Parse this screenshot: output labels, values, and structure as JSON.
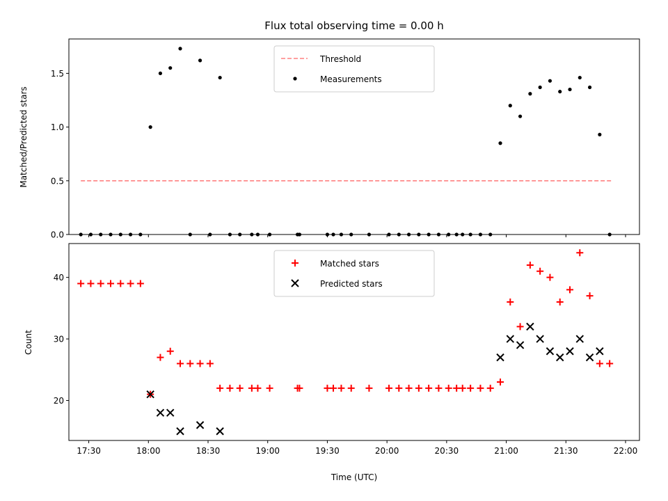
{
  "title": "Flux total observing time = 0.00 h",
  "chart_data": [
    {
      "type": "scatter",
      "ylabel": "Matched/Predicted stars",
      "xlabel": "",
      "xlim": [
        "17:20",
        "22:07"
      ],
      "ylim": [
        0,
        1.82
      ],
      "y_ticks": [
        0.0,
        0.5,
        1.0,
        1.5
      ],
      "y_tick_labels": [
        "0.0",
        "0.5",
        "1.0",
        "1.5"
      ],
      "x_ticks": [
        "17:30",
        "18:00",
        "18:30",
        "19:00",
        "19:30",
        "20:00",
        "20:30",
        "21:00",
        "21:30",
        "22:00"
      ],
      "threshold": {
        "name": "Threshold",
        "x": [
          "17:26",
          "21:53"
        ],
        "y": 0.5,
        "color": "#ff8080",
        "style": "dashed"
      },
      "series": [
        {
          "name": "Measurements",
          "color": "#000000",
          "marker": "dot",
          "points": [
            [
              "17:26",
              0
            ],
            [
              "17:31",
              0
            ],
            [
              "17:36",
              0
            ],
            [
              "17:41",
              0
            ],
            [
              "17:46",
              0
            ],
            [
              "17:51",
              0
            ],
            [
              "17:56",
              0
            ],
            [
              "18:01",
              1.0
            ],
            [
              "18:06",
              1.5
            ],
            [
              "18:11",
              1.55
            ],
            [
              "18:16",
              1.73
            ],
            [
              "18:21",
              0
            ],
            [
              "18:26",
              1.62
            ],
            [
              "18:31",
              0
            ],
            [
              "18:36",
              1.46
            ],
            [
              "18:41",
              0
            ],
            [
              "18:46",
              0
            ],
            [
              "18:52",
              0
            ],
            [
              "18:55",
              0
            ],
            [
              "19:01",
              0
            ],
            [
              "19:15",
              0
            ],
            [
              "19:16",
              0
            ],
            [
              "19:30",
              0
            ],
            [
              "19:33",
              0
            ],
            [
              "19:37",
              0
            ],
            [
              "19:42",
              0
            ],
            [
              "19:51",
              0
            ],
            [
              "20:01",
              0
            ],
            [
              "20:06",
              0
            ],
            [
              "20:11",
              0
            ],
            [
              "20:16",
              0
            ],
            [
              "20:21",
              0
            ],
            [
              "20:26",
              0
            ],
            [
              "20:31",
              0
            ],
            [
              "20:35",
              0
            ],
            [
              "20:38",
              0
            ],
            [
              "20:42",
              0
            ],
            [
              "20:47",
              0
            ],
            [
              "20:52",
              0
            ],
            [
              "20:57",
              0.85
            ],
            [
              "21:02",
              1.2
            ],
            [
              "21:07",
              1.1
            ],
            [
              "21:12",
              1.31
            ],
            [
              "21:17",
              1.37
            ],
            [
              "21:22",
              1.43
            ],
            [
              "21:27",
              1.33
            ],
            [
              "21:32",
              1.35
            ],
            [
              "21:37",
              1.46
            ],
            [
              "21:42",
              1.37
            ],
            [
              "21:47",
              0.93
            ],
            [
              "21:52",
              0
            ]
          ]
        }
      ],
      "legend": [
        "Threshold",
        "Measurements"
      ],
      "legend_position": "top-center"
    },
    {
      "type": "scatter",
      "ylabel": "Count",
      "xlabel": "Time (UTC)",
      "xlim": [
        "17:20",
        "22:07"
      ],
      "ylim": [
        13.5,
        45.5
      ],
      "y_ticks": [
        20,
        30,
        40
      ],
      "y_tick_labels": [
        "20",
        "30",
        "40"
      ],
      "x_ticks": [
        "17:30",
        "18:00",
        "18:30",
        "19:00",
        "19:30",
        "20:00",
        "20:30",
        "21:00",
        "21:30",
        "22:00"
      ],
      "x_tick_labels": [
        "17:30",
        "18:00",
        "18:30",
        "19:00",
        "19:30",
        "20:00",
        "20:30",
        "21:00",
        "21:30",
        "22:00"
      ],
      "series": [
        {
          "name": "Matched stars",
          "color": "#ff0000",
          "marker": "plus",
          "points": [
            [
              "17:26",
              39
            ],
            [
              "17:31",
              39
            ],
            [
              "17:36",
              39
            ],
            [
              "17:41",
              39
            ],
            [
              "17:46",
              39
            ],
            [
              "17:51",
              39
            ],
            [
              "17:56",
              39
            ],
            [
              "18:01",
              21
            ],
            [
              "18:06",
              27
            ],
            [
              "18:11",
              28
            ],
            [
              "18:16",
              26
            ],
            [
              "18:21",
              26
            ],
            [
              "18:26",
              26
            ],
            [
              "18:31",
              26
            ],
            [
              "18:36",
              22
            ],
            [
              "18:41",
              22
            ],
            [
              "18:46",
              22
            ],
            [
              "18:52",
              22
            ],
            [
              "18:55",
              22
            ],
            [
              "19:01",
              22
            ],
            [
              "19:15",
              22
            ],
            [
              "19:16",
              22
            ],
            [
              "19:30",
              22
            ],
            [
              "19:33",
              22
            ],
            [
              "19:37",
              22
            ],
            [
              "19:42",
              22
            ],
            [
              "19:51",
              22
            ],
            [
              "20:01",
              22
            ],
            [
              "20:06",
              22
            ],
            [
              "20:11",
              22
            ],
            [
              "20:16",
              22
            ],
            [
              "20:21",
              22
            ],
            [
              "20:26",
              22
            ],
            [
              "20:31",
              22
            ],
            [
              "20:35",
              22
            ],
            [
              "20:38",
              22
            ],
            [
              "20:42",
              22
            ],
            [
              "20:47",
              22
            ],
            [
              "20:52",
              22
            ],
            [
              "20:57",
              23
            ],
            [
              "21:02",
              36
            ],
            [
              "21:07",
              32
            ],
            [
              "21:12",
              42
            ],
            [
              "21:17",
              41
            ],
            [
              "21:22",
              40
            ],
            [
              "21:27",
              36
            ],
            [
              "21:32",
              38
            ],
            [
              "21:37",
              44
            ],
            [
              "21:42",
              37
            ],
            [
              "21:47",
              26
            ],
            [
              "21:52",
              26
            ]
          ]
        },
        {
          "name": "Predicted stars",
          "color": "#000000",
          "marker": "x",
          "points": [
            [
              "18:01",
              21
            ],
            [
              "18:06",
              18
            ],
            [
              "18:11",
              18
            ],
            [
              "18:16",
              15
            ],
            [
              "18:26",
              16
            ],
            [
              "18:36",
              15
            ],
            [
              "20:57",
              27
            ],
            [
              "21:02",
              30
            ],
            [
              "21:07",
              29
            ],
            [
              "21:12",
              32
            ],
            [
              "21:17",
              30
            ],
            [
              "21:22",
              28
            ],
            [
              "21:27",
              27
            ],
            [
              "21:32",
              28
            ],
            [
              "21:37",
              30
            ],
            [
              "21:42",
              27
            ],
            [
              "21:47",
              28
            ]
          ]
        }
      ],
      "legend": [
        "Matched stars",
        "Predicted stars"
      ],
      "legend_position": "top-center"
    }
  ]
}
